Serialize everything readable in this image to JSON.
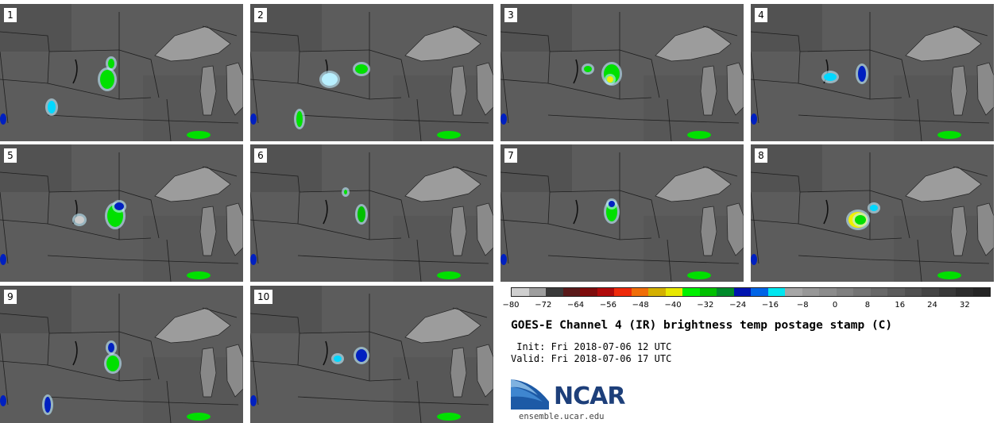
{
  "panels": [
    {
      "label": "1"
    },
    {
      "label": "2"
    },
    {
      "label": "3"
    },
    {
      "label": "4"
    },
    {
      "label": "5"
    },
    {
      "label": "6"
    },
    {
      "label": "7"
    },
    {
      "label": "8"
    },
    {
      "label": "9"
    },
    {
      "label": "10"
    }
  ],
  "colorbar": {
    "colors": [
      "#cfcfcf",
      "#9e9e9e",
      "#3a3a3a",
      "#5a1a1a",
      "#7e0c0c",
      "#b00a0a",
      "#ee2a0a",
      "#f06e08",
      "#d4b000",
      "#e8e800",
      "#00f000",
      "#00c000",
      "#008a2a",
      "#0014b0",
      "#0064e6",
      "#00e6f0",
      "#a6a6a6",
      "#989898",
      "#8c8c8c",
      "#808080",
      "#747474",
      "#686868",
      "#5c5c5c",
      "#505050",
      "#444444",
      "#383838",
      "#2c2c2c",
      "#242424"
    ],
    "tick_labels": [
      "−80",
      "−72",
      "−64",
      "−56",
      "−48",
      "−40",
      "−32",
      "−24",
      "−16",
      "−8",
      "0",
      "8",
      "16",
      "24",
      "32"
    ]
  },
  "title": "GOES-E Channel 4 (IR) brightness temp postage stamp (C)",
  "init_text": " Init: Fri 2018-07-06 12 UTC",
  "valid_text": "Valid: Fri 2018-07-06 17 UTC",
  "logo": {
    "text": "NCAR",
    "url": "ensemble.ucar.edu"
  }
}
